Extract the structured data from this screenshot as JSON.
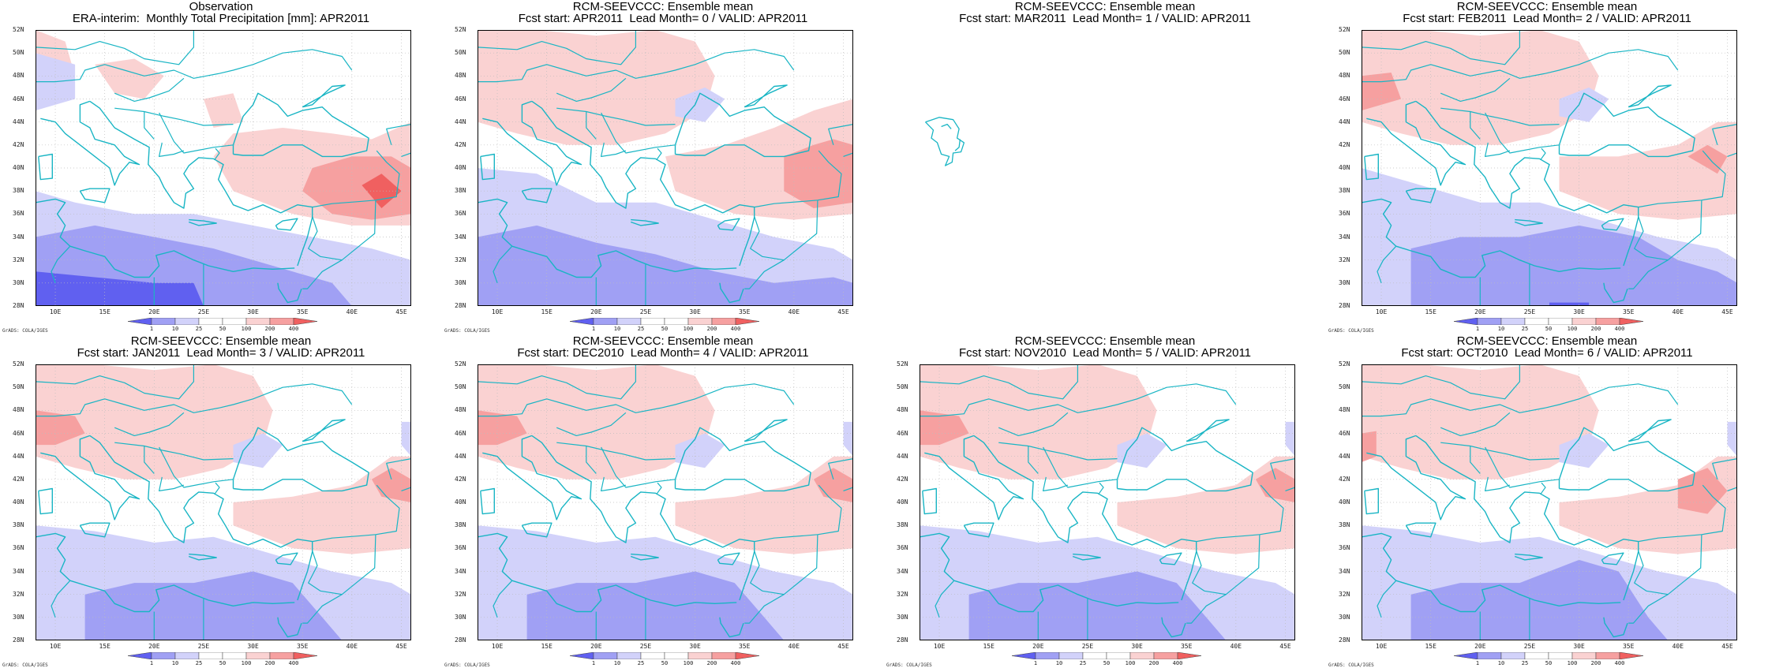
{
  "panels": [
    {
      "title1": "Observation",
      "title2": "ERA-interim:  Monthly Total Precipitation [mm]: APR2011",
      "pattern": "obs",
      "has_map": true
    },
    {
      "title1": "RCM-SEEVCCC: Ensemble mean",
      "title2": "Fcst start: APR2011  Lead Month= 0 / VALID: APR2011",
      "pattern": "lead0",
      "has_map": true
    },
    {
      "title1": "RCM-SEEVCCC: Ensemble mean",
      "title2": "Fcst start: MAR2011  Lead Month= 1 / VALID: APR2011",
      "pattern": "none",
      "has_map": false
    },
    {
      "title1": "RCM-SEEVCCC: Ensemble mean",
      "title2": "Fcst start: FEB2011  Lead Month= 2 / VALID: APR2011",
      "pattern": "lead2",
      "has_map": true
    },
    {
      "title1": "RCM-SEEVCCC: Ensemble mean",
      "title2": "Fcst start: JAN2011  Lead Month= 3 / VALID: APR2011",
      "pattern": "lead3",
      "has_map": true
    },
    {
      "title1": "RCM-SEEVCCC: Ensemble mean",
      "title2": "Fcst start: DEC2010  Lead Month= 4 / VALID: APR2011",
      "pattern": "lead3",
      "has_map": true
    },
    {
      "title1": "RCM-SEEVCCC: Ensemble mean",
      "title2": "Fcst start: NOV2010  Lead Month= 5 / VALID: APR2011",
      "pattern": "lead3",
      "has_map": true
    },
    {
      "title1": "RCM-SEEVCCC: Ensemble mean",
      "title2": "Fcst start: OCT2010  Lead Month= 6 / VALID: APR2011",
      "pattern": "lead6",
      "has_map": true
    }
  ],
  "lat_labels": [
    "52N",
    "50N",
    "48N",
    "46N",
    "44N",
    "42N",
    "40N",
    "38N",
    "36N",
    "34N",
    "32N",
    "30N",
    "28N"
  ],
  "lon_labels": [
    "10E",
    "15E",
    "20E",
    "25E",
    "30E",
    "35E",
    "40E",
    "45E"
  ],
  "colorbar_labels": [
    "1",
    "10",
    "25",
    "50",
    "100",
    "200",
    "400"
  ],
  "colorbar_colors": [
    "#6060f0",
    "#a0a0f4",
    "#d2d2fa",
    "#ffffff",
    "#fad2d2",
    "#f6a0a0",
    "#f06060"
  ],
  "credit": "GrADS: COLA/IGES",
  "colors": {
    "coast": "#19b5c4",
    "grid": "#bdbdbd"
  }
}
